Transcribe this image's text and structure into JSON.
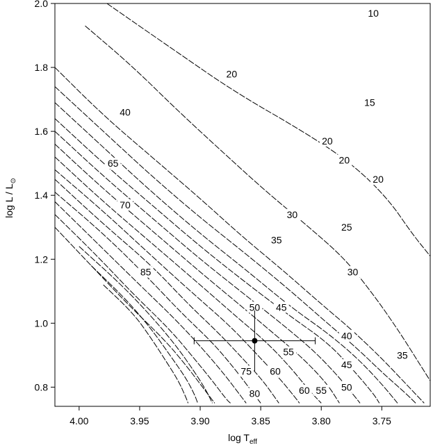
{
  "chart_data": {
    "type": "line",
    "xlabel": "log T",
    "xlabel_sub": "eff",
    "ylabel": "log L / L",
    "ylabel_sub": "⊙",
    "xlim": [
      4.02,
      3.71
    ],
    "ylim": [
      0.74,
      2.0
    ],
    "x_reversed": true,
    "xticks": [
      {
        "v": 4.0,
        "label": "4.00"
      },
      {
        "v": 3.95,
        "label": "3.95"
      },
      {
        "v": 3.9,
        "label": "3.90"
      },
      {
        "v": 3.85,
        "label": "3.85"
      },
      {
        "v": 3.8,
        "label": "3.80"
      },
      {
        "v": 3.75,
        "label": "3.75"
      }
    ],
    "yticks": [
      {
        "v": 0.8,
        "label": "0.8"
      },
      {
        "v": 1.0,
        "label": "1.0"
      },
      {
        "v": 1.2,
        "label": "1.2"
      },
      {
        "v": 1.4,
        "label": "1.4"
      },
      {
        "v": 1.6,
        "label": "1.6"
      },
      {
        "v": 1.8,
        "label": "1.8"
      },
      {
        "v": 2.0,
        "label": "2.0"
      }
    ],
    "grid": false,
    "legend": "none",
    "series": [
      {
        "points": [
          [
            3.977,
            2.0
          ],
          [
            3.92,
            1.85
          ],
          [
            3.87,
            1.72
          ],
          [
            3.815,
            1.6
          ],
          [
            3.775,
            1.5
          ],
          [
            3.745,
            1.39
          ],
          [
            3.725,
            1.28
          ],
          [
            3.71,
            1.21
          ]
        ]
      },
      {
        "points": [
          [
            3.995,
            1.93
          ],
          [
            3.955,
            1.8
          ],
          [
            3.92,
            1.67
          ],
          [
            3.88,
            1.53
          ],
          [
            3.845,
            1.41
          ],
          [
            3.81,
            1.3
          ],
          [
            3.78,
            1.2
          ],
          [
            3.755,
            1.08
          ],
          [
            3.735,
            0.97
          ],
          [
            3.72,
            0.88
          ],
          [
            3.71,
            0.82
          ]
        ]
      },
      {
        "points": [
          [
            4.02,
            1.8
          ],
          [
            3.98,
            1.65
          ],
          [
            3.94,
            1.52
          ],
          [
            3.9,
            1.39
          ],
          [
            3.865,
            1.27
          ],
          [
            3.83,
            1.16
          ],
          [
            3.8,
            1.06
          ],
          [
            3.775,
            0.98
          ],
          [
            3.75,
            0.89
          ],
          [
            3.73,
            0.81
          ],
          [
            3.715,
            0.75
          ]
        ]
      },
      {
        "points": [
          [
            4.02,
            1.74
          ],
          [
            3.98,
            1.6
          ],
          [
            3.94,
            1.46
          ],
          [
            3.9,
            1.33
          ],
          [
            3.86,
            1.21
          ],
          [
            3.825,
            1.1
          ],
          [
            3.795,
            1.0
          ],
          [
            3.77,
            0.92
          ],
          [
            3.748,
            0.84
          ],
          [
            3.73,
            0.78
          ],
          [
            3.722,
            0.75
          ]
        ]
      },
      {
        "points": [
          [
            4.02,
            1.69
          ],
          [
            3.98,
            1.55
          ],
          [
            3.94,
            1.41
          ],
          [
            3.9,
            1.28
          ],
          [
            3.86,
            1.16
          ],
          [
            3.825,
            1.05
          ],
          [
            3.795,
            0.97
          ],
          [
            3.77,
            0.89
          ],
          [
            3.75,
            0.81
          ],
          [
            3.737,
            0.75
          ]
        ]
      },
      {
        "points": [
          [
            4.02,
            1.64
          ],
          [
            3.98,
            1.5
          ],
          [
            3.94,
            1.37
          ],
          [
            3.9,
            1.24
          ],
          [
            3.86,
            1.12
          ],
          [
            3.825,
            1.02
          ],
          [
            3.795,
            0.94
          ],
          [
            3.775,
            0.86
          ],
          [
            3.757,
            0.78
          ],
          [
            3.752,
            0.75
          ]
        ]
      },
      {
        "points": [
          [
            4.02,
            1.6
          ],
          [
            3.98,
            1.46
          ],
          [
            3.94,
            1.33
          ],
          [
            3.9,
            1.2
          ],
          [
            3.86,
            1.08
          ],
          [
            3.83,
            0.99
          ],
          [
            3.805,
            0.91
          ],
          [
            3.785,
            0.83
          ],
          [
            3.77,
            0.76
          ],
          [
            3.768,
            0.75
          ]
        ]
      },
      {
        "points": [
          [
            4.02,
            1.56
          ],
          [
            3.98,
            1.42
          ],
          [
            3.94,
            1.29
          ],
          [
            3.9,
            1.16
          ],
          [
            3.865,
            1.05
          ],
          [
            3.84,
            0.97
          ],
          [
            3.815,
            0.89
          ],
          [
            3.795,
            0.81
          ],
          [
            3.785,
            0.75
          ]
        ]
      },
      {
        "points": [
          [
            4.02,
            1.52
          ],
          [
            3.98,
            1.38
          ],
          [
            3.94,
            1.25
          ],
          [
            3.9,
            1.12
          ],
          [
            3.87,
            1.02
          ],
          [
            3.845,
            0.94
          ],
          [
            3.825,
            0.86
          ],
          [
            3.81,
            0.79
          ],
          [
            3.8,
            0.75
          ]
        ]
      },
      {
        "points": [
          [
            4.02,
            1.48
          ],
          [
            3.98,
            1.35
          ],
          [
            3.94,
            1.21
          ],
          [
            3.905,
            1.09
          ],
          [
            3.875,
            0.99
          ],
          [
            3.855,
            0.91
          ],
          [
            3.835,
            0.83
          ],
          [
            3.822,
            0.77
          ],
          [
            3.818,
            0.75
          ]
        ]
      },
      {
        "points": [
          [
            4.02,
            1.45
          ],
          [
            3.98,
            1.31
          ],
          [
            3.94,
            1.18
          ],
          [
            3.91,
            1.06
          ],
          [
            3.885,
            0.97
          ],
          [
            3.865,
            0.89
          ],
          [
            3.848,
            0.82
          ],
          [
            3.835,
            0.75
          ]
        ]
      },
      {
        "points": [
          [
            4.02,
            1.41
          ],
          [
            3.98,
            1.28
          ],
          [
            3.945,
            1.15
          ],
          [
            3.915,
            1.03
          ],
          [
            3.89,
            0.94
          ],
          [
            3.872,
            0.86
          ],
          [
            3.858,
            0.79
          ],
          [
            3.85,
            0.75
          ]
        ]
      },
      {
        "points": [
          [
            4.02,
            1.38
          ],
          [
            3.985,
            1.25
          ],
          [
            3.95,
            1.12
          ],
          [
            3.92,
            1.01
          ],
          [
            3.898,
            0.92
          ],
          [
            3.88,
            0.84
          ],
          [
            3.868,
            0.78
          ],
          [
            3.862,
            0.75
          ]
        ]
      },
      {
        "points": [
          [
            4.02,
            1.34
          ],
          [
            3.985,
            1.21
          ],
          [
            3.955,
            1.09
          ],
          [
            3.925,
            0.98
          ],
          [
            3.905,
            0.89
          ],
          [
            3.89,
            0.82
          ],
          [
            3.878,
            0.76
          ],
          [
            3.875,
            0.75
          ]
        ]
      },
      {
        "points": [
          [
            4.02,
            1.3
          ],
          [
            3.99,
            1.18
          ],
          [
            3.96,
            1.06
          ],
          [
            3.93,
            0.95
          ],
          [
            3.912,
            0.87
          ],
          [
            3.898,
            0.8
          ],
          [
            3.888,
            0.75
          ]
        ]
      },
      {
        "points": [
          [
            4.0,
            1.24
          ],
          [
            3.965,
            1.12
          ],
          [
            3.94,
            1.02
          ],
          [
            3.92,
            0.93
          ],
          [
            3.905,
            0.85
          ],
          [
            3.895,
            0.79
          ],
          [
            3.89,
            0.75
          ]
        ]
      },
      {
        "points": [
          [
            3.99,
            1.18
          ],
          [
            3.96,
            1.07
          ],
          [
            3.94,
            0.98
          ],
          [
            3.925,
            0.9
          ],
          [
            3.912,
            0.83
          ],
          [
            3.905,
            0.78
          ],
          [
            3.902,
            0.75
          ]
        ]
      },
      {
        "points": [
          [
            3.98,
            1.12
          ],
          [
            3.955,
            1.03
          ],
          [
            3.94,
            0.95
          ],
          [
            3.928,
            0.88
          ],
          [
            3.918,
            0.82
          ],
          [
            3.912,
            0.77
          ],
          [
            3.91,
            0.75
          ]
        ]
      }
    ],
    "contour_labels": [
      {
        "text": "10",
        "x": 3.757,
        "y": 1.97
      },
      {
        "text": "20",
        "x": 3.874,
        "y": 1.78
      },
      {
        "text": "15",
        "x": 3.76,
        "y": 1.69
      },
      {
        "text": "40",
        "x": 3.962,
        "y": 1.66
      },
      {
        "text": "20",
        "x": 3.795,
        "y": 1.57
      },
      {
        "text": "20",
        "x": 3.781,
        "y": 1.51
      },
      {
        "text": "65",
        "x": 3.972,
        "y": 1.5
      },
      {
        "text": "20",
        "x": 3.753,
        "y": 1.45
      },
      {
        "text": "70",
        "x": 3.962,
        "y": 1.37
      },
      {
        "text": "30",
        "x": 3.824,
        "y": 1.34
      },
      {
        "text": "25",
        "x": 3.779,
        "y": 1.3
      },
      {
        "text": "35",
        "x": 3.837,
        "y": 1.26
      },
      {
        "text": "85",
        "x": 3.945,
        "y": 1.16
      },
      {
        "text": "30",
        "x": 3.774,
        "y": 1.16
      },
      {
        "text": "50",
        "x": 3.855,
        "y": 1.05
      },
      {
        "text": "45",
        "x": 3.833,
        "y": 1.05
      },
      {
        "text": "40",
        "x": 3.779,
        "y": 0.96
      },
      {
        "text": "55",
        "x": 3.827,
        "y": 0.91
      },
      {
        "text": "35",
        "x": 3.733,
        "y": 0.9
      },
      {
        "text": "60",
        "x": 3.838,
        "y": 0.85
      },
      {
        "text": "45",
        "x": 3.779,
        "y": 0.87
      },
      {
        "text": "75",
        "x": 3.862,
        "y": 0.85
      },
      {
        "text": "60",
        "x": 3.814,
        "y": 0.79
      },
      {
        "text": "55",
        "x": 3.8,
        "y": 0.79
      },
      {
        "text": "50",
        "x": 3.779,
        "y": 0.8
      },
      {
        "text": "80",
        "x": 3.855,
        "y": 0.78
      }
    ],
    "data_point": {
      "x": 3.855,
      "y": 0.945,
      "x_err": 0.05,
      "y_err": 0.095
    }
  }
}
